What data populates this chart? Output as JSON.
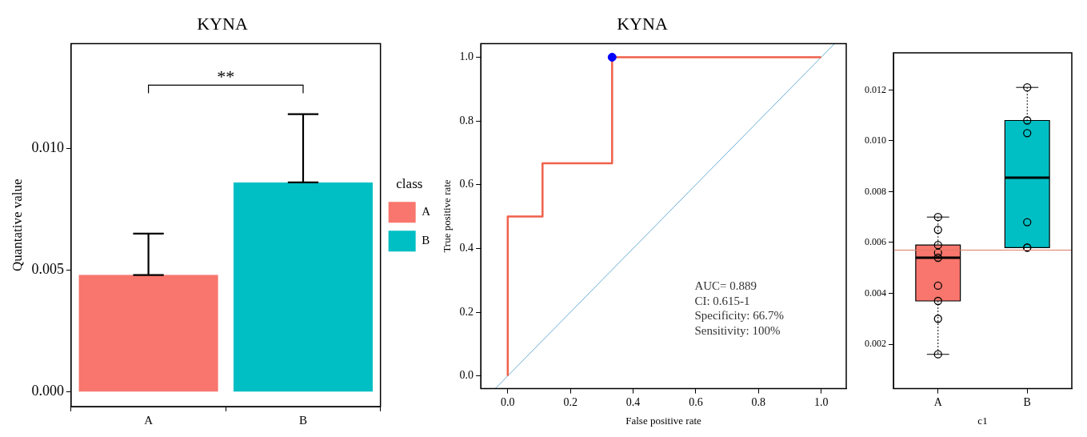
{
  "chart_data": [
    {
      "type": "bar",
      "title": "KYNA",
      "ylabel": "Quantative value",
      "legend_title": "class",
      "legend": "right",
      "grid": false,
      "categories": [
        "A",
        "B"
      ],
      "series": [
        {
          "name": "A",
          "color": "#f8766d",
          "values": [
            0.0048,
            null
          ],
          "errors": [
            [
              0.0048,
              0.0065
            ],
            null
          ]
        },
        {
          "name": "B",
          "color": "#00bfc4",
          "values": [
            null,
            0.0086
          ],
          "errors": [
            null,
            [
              0.0086,
              0.0114
            ]
          ]
        }
      ],
      "ylim": [
        -0.0006,
        0.0143
      ],
      "yticks": [
        {
          "value": 0,
          "label": "0.000"
        },
        0.005,
        {
          "value": 0.01,
          "label": "0.010"
        }
      ],
      "annotations": [
        "**"
      ]
    },
    {
      "type": "line",
      "title": "KYNA",
      "xlabel": "False positive rate",
      "ylabel": "True positive rate",
      "grid": false,
      "legend": false,
      "xlim": [
        -0.086,
        1.08
      ],
      "ylim": [
        -0.04,
        1.043
      ],
      "xticks": [
        {
          "value": 0,
          "label": "0.0"
        },
        0.2,
        0.4,
        0.6,
        0.8,
        {
          "value": 1,
          "label": "1.0"
        }
      ],
      "yticks": [
        {
          "value": 0,
          "label": "0.0"
        },
        0.2,
        0.4,
        0.6,
        0.8,
        {
          "value": 1,
          "label": "1.0"
        }
      ],
      "series": [
        {
          "type": "line",
          "color": "#f0604a",
          "marker": "none",
          "x": [
            0,
            0,
            0.111,
            0.111,
            0.333,
            0.333,
            1
          ],
          "values": [
            0,
            0.5,
            0.5,
            0.667,
            0.667,
            1,
            1
          ]
        },
        {
          "type": "line",
          "color": "#6baed6",
          "marker": "none",
          "x": [
            -0.04,
            1.043
          ],
          "values": [
            -0.04,
            1.043
          ]
        },
        {
          "type": "scatter",
          "color": "#0000ff",
          "marker": "circle",
          "x": [
            0.333
          ],
          "values": [
            1
          ]
        }
      ],
      "annotations": [
        "AUC= 0.889",
        "CI: 0.615-1",
        "Specificity: 66.7%",
        "Sensitivity: 100%"
      ]
    },
    {
      "type": "box",
      "xlabel": "c1",
      "grid": false,
      "legend": false,
      "categories": [
        "A",
        "B"
      ],
      "colors": [
        "#f8766d",
        "#00bfc4"
      ],
      "ylim": [
        0.00025,
        0.01346
      ],
      "yticks": [
        0.002,
        0.004,
        0.006,
        0.008,
        {
          "value": 0.01,
          "label": "0.010"
        },
        0.012
      ],
      "boxes": [
        {
          "low": 0.0016,
          "q1": 0.0037,
          "median": 0.0054,
          "q3": 0.0059,
          "high": 0.007
        },
        {
          "low": 0.0058,
          "q1": 0.0058,
          "median": 0.00855,
          "q3": 0.0108,
          "high": 0.0121
        }
      ],
      "series": [
        {
          "type": "scatter",
          "color": "#000000",
          "marker": "circle",
          "x": [
            "A",
            "A",
            "A",
            "A",
            "A",
            "A",
            "A",
            "A",
            "A"
          ],
          "values": [
            0.007,
            0.0065,
            0.0059,
            0.0056,
            0.0054,
            0.0043,
            0.0037,
            0.003,
            0.0016
          ]
        },
        {
          "type": "scatter",
          "color": "#000000",
          "marker": "circle",
          "x": [
            "B",
            "B",
            "B",
            "B",
            "B",
            "B"
          ],
          "values": [
            0.0121,
            0.0108,
            0.0103,
            0.0068,
            0.0058,
            0.0058
          ]
        }
      ],
      "ref_lines": [
        {
          "axis": "y",
          "value": 0.0057,
          "color": "#e07a68"
        }
      ]
    }
  ]
}
